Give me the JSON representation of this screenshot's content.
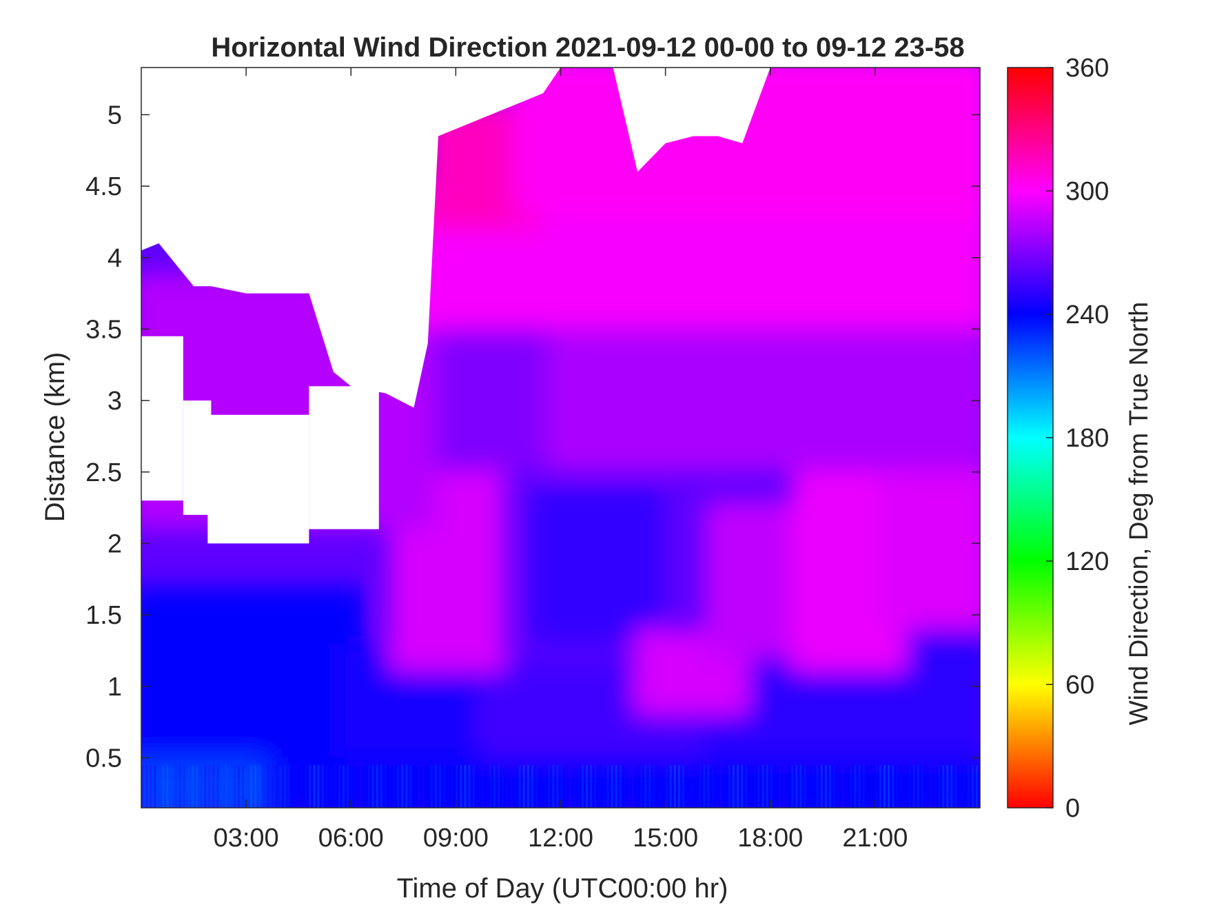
{
  "chart_data": {
    "type": "heatmap",
    "title": "Horizontal Wind Direction 2021-09-12 00-00 to 09-12 23-58",
    "xlabel": "Time of Day (UTC00:00 hr)",
    "ylabel": "Distance (km)",
    "colorbar_label": "Wind Direction, Deg from True North",
    "xlim": [
      0,
      24
    ],
    "ylim": [
      0.15,
      5.33
    ],
    "clim": [
      0,
      360
    ],
    "x_ticks": [
      {
        "value": 3,
        "label": "03:00"
      },
      {
        "value": 6,
        "label": "06:00"
      },
      {
        "value": 9,
        "label": "09:00"
      },
      {
        "value": 12,
        "label": "12:00"
      },
      {
        "value": 15,
        "label": "15:00"
      },
      {
        "value": 18,
        "label": "18:00"
      },
      {
        "value": 21,
        "label": "21:00"
      }
    ],
    "y_ticks": [
      {
        "value": 0.5,
        "label": "0.5"
      },
      {
        "value": 1,
        "label": "1"
      },
      {
        "value": 1.5,
        "label": "1.5"
      },
      {
        "value": 2,
        "label": "2"
      },
      {
        "value": 2.5,
        "label": "2.5"
      },
      {
        "value": 3,
        "label": "3"
      },
      {
        "value": 3.5,
        "label": "3.5"
      },
      {
        "value": 4,
        "label": "4"
      },
      {
        "value": 4.5,
        "label": "4.5"
      },
      {
        "value": 5,
        "label": "5"
      }
    ],
    "colorbar_ticks": [
      {
        "value": 0,
        "label": "0"
      },
      {
        "value": 60,
        "label": "60"
      },
      {
        "value": 120,
        "label": "120"
      },
      {
        "value": 180,
        "label": "180"
      },
      {
        "value": 240,
        "label": "240"
      },
      {
        "value": 300,
        "label": "300"
      },
      {
        "value": 360,
        "label": "360"
      }
    ],
    "colormap": [
      "#ff0000",
      "#ffff00",
      "#00ff00",
      "#00ffff",
      "#0000ff",
      "#ff00ff",
      "#ff0000"
    ],
    "grid": false,
    "data_ceiling_km": [
      [
        0.0,
        4.05
      ],
      [
        0.5,
        4.1
      ],
      [
        1.0,
        3.95
      ],
      [
        1.5,
        3.8
      ],
      [
        2.0,
        3.8
      ],
      [
        3.0,
        3.75
      ],
      [
        4.0,
        3.75
      ],
      [
        4.8,
        3.75
      ],
      [
        5.5,
        3.2
      ],
      [
        6.0,
        3.1
      ],
      [
        7.0,
        3.05
      ],
      [
        7.8,
        2.95
      ],
      [
        8.2,
        3.4
      ],
      [
        8.5,
        4.85
      ],
      [
        10.0,
        5.0
      ],
      [
        11.5,
        5.15
      ],
      [
        12.0,
        5.33
      ],
      [
        13.5,
        5.33
      ],
      [
        14.2,
        4.6
      ],
      [
        15.0,
        4.8
      ],
      [
        15.8,
        4.85
      ],
      [
        16.5,
        4.85
      ],
      [
        17.2,
        4.8
      ],
      [
        18.0,
        5.33
      ],
      [
        24.0,
        5.33
      ]
    ],
    "data_gaps": [
      {
        "t": [
          0.0,
          1.2
        ],
        "km": [
          2.3,
          3.45
        ]
      },
      {
        "t": [
          1.2,
          2.0
        ],
        "km": [
          2.2,
          3.0
        ]
      },
      {
        "t": [
          1.9,
          4.8
        ],
        "km": [
          2.0,
          2.9
        ]
      },
      {
        "t": [
          4.8,
          6.8
        ],
        "km": [
          2.1,
          3.1
        ]
      }
    ],
    "regions": [
      {
        "t": [
          0.0,
          4.0
        ],
        "km": [
          0.15,
          0.6
        ],
        "direction": 225
      },
      {
        "t": [
          4.0,
          24.0
        ],
        "km": [
          0.15,
          0.55
        ],
        "direction": 240
      },
      {
        "t": [
          0.0,
          6.0
        ],
        "km": [
          0.6,
          1.6
        ],
        "direction": 240
      },
      {
        "t": [
          6.0,
          10.0
        ],
        "km": [
          0.6,
          1.2
        ],
        "direction": 245
      },
      {
        "t": [
          10.0,
          16.5
        ],
        "km": [
          0.6,
          1.1
        ],
        "direction": 255
      },
      {
        "t": [
          16.5,
          24.0
        ],
        "km": [
          0.6,
          1.3
        ],
        "direction": 250
      },
      {
        "t": [
          7.5,
          10.0
        ],
        "km": [
          1.2,
          2.6
        ],
        "direction": 290
      },
      {
        "t": [
          11.5,
          14.5
        ],
        "km": [
          1.4,
          2.3
        ],
        "direction": 252
      },
      {
        "t": [
          14.5,
          17.0
        ],
        "km": [
          0.9,
          1.3
        ],
        "direction": 290
      },
      {
        "t": [
          16.5,
          19.0
        ],
        "km": [
          1.3,
          2.2
        ],
        "direction": 285
      },
      {
        "t": [
          19.0,
          21.5
        ],
        "km": [
          1.2,
          2.8
        ],
        "direction": 295
      },
      {
        "t": [
          21.5,
          24.0
        ],
        "km": [
          1.5,
          2.6
        ],
        "direction": 292
      },
      {
        "t": [
          8.0,
          12.0
        ],
        "km": [
          2.6,
          3.5
        ],
        "direction": 270
      },
      {
        "t": [
          12.0,
          24.0
        ],
        "km": [
          2.6,
          3.6
        ],
        "direction": 280
      },
      {
        "t": [
          0.0,
          8.0
        ],
        "km": [
          2.2,
          3.8
        ],
        "direction": 282
      },
      {
        "t": [
          8.0,
          24.0
        ],
        "km": [
          3.6,
          4.4
        ],
        "direction": 298
      },
      {
        "t": [
          8.5,
          11.0
        ],
        "km": [
          4.3,
          5.0
        ],
        "direction": 315
      },
      {
        "t": [
          11.0,
          24.0
        ],
        "km": [
          4.4,
          5.33
        ],
        "direction": 302
      }
    ]
  }
}
